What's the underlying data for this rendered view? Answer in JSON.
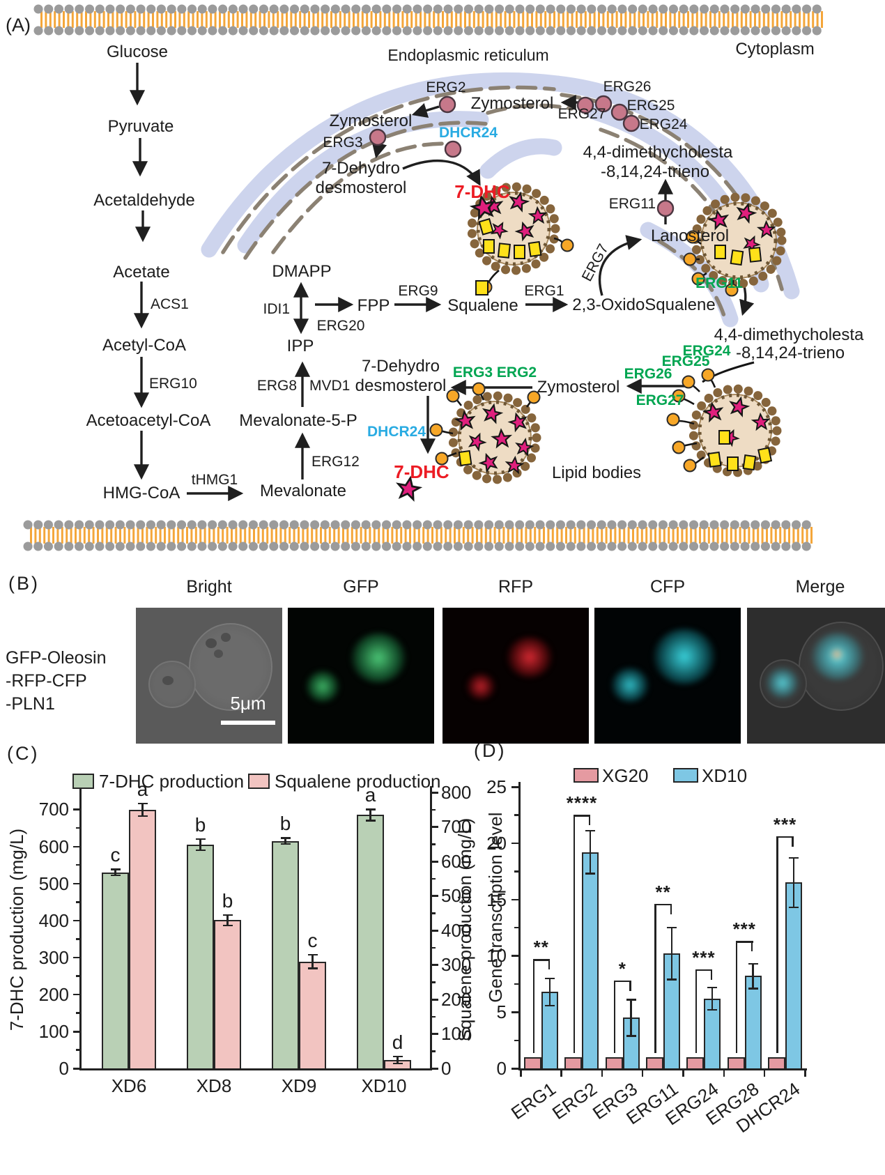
{
  "colors": {
    "green_label": "#00A551",
    "blue_label": "#29ABE2",
    "red_label": "#EC1C24",
    "dhc_bar": "#B9D0B5",
    "squalene_bar": "#F2C4C1",
    "xg20_bar": "#E59AA1",
    "xd10_bar": "#7EC7E4",
    "membrane_tail": "#F4A63A",
    "er_band": "#CDD4ED",
    "lipid_fill": "#EEDCC4",
    "star_pink": "#E01F7D",
    "square_yellow": "#FFE11A",
    "dot_orange": "#F7A727"
  },
  "panel_a": {
    "label": "(A)",
    "cytoplasm": "Cytoplasm",
    "er_title": "Endoplasmic reticulum",
    "lipid_bodies": "Lipid bodies",
    "nodes": {
      "glucose": "Glucose",
      "pyruvate": "Pyruvate",
      "acetaldehyde": "Acetaldehyde",
      "acetate": "Acetate",
      "acetyl_coa": "Acetyl-CoA",
      "acetoacetyl_coa": "Acetoacetyl-CoA",
      "hmg_coa": "HMG-CoA",
      "mevalonate": "Mevalonate",
      "mevalonate_5p": "Mevalonate-5-P",
      "ipp": "IPP",
      "dmapp": "DMAPP",
      "fpp": "FPP",
      "squalene": "Squalene",
      "oxidosqualene": "2,3-OxidoSqualene",
      "lanosterol": "Lanosterol",
      "dimethycholesta_line1": "4,4-dimethycholesta",
      "dimethycholesta_line2": "-8,14,24-trieno",
      "zymosterol": "Zymosterol",
      "dehydro_line1": "7-Dehydro",
      "dehydro_line2": "desmosterol",
      "seven_dhc": "7-DHC"
    },
    "enzymes": {
      "acs1": "ACS1",
      "erg10": "ERG10",
      "thmg1": "tHMG1",
      "erg12": "ERG12",
      "erg8": "ERG8",
      "mvd1": "MVD1",
      "idi1": "IDI1",
      "erg20": "ERG20",
      "erg9": "ERG9",
      "erg1": "ERG1",
      "erg7": "ERG7",
      "erg11": "ERG11",
      "erg2": "ERG2",
      "erg3": "ERG3",
      "erg24": "ERG24",
      "erg25": "ERG25",
      "erg26": "ERG26",
      "erg27": "ERG27",
      "dhcr24": "DHCR24",
      "erg3_erg2": "ERG3 ERG2"
    }
  },
  "panel_b": {
    "label": "(B)",
    "strain_lines": [
      "GFP-Oleosin",
      "-RFP-CFP",
      "-PLN1"
    ],
    "columns": [
      "Bright",
      "GFP",
      "RFP",
      "CFP",
      "Merge"
    ],
    "scale_bar": "5μm"
  },
  "panel_c": {
    "label": "(C)",
    "chart_data": {
      "type": "bar",
      "categories": [
        "XD6",
        "XD8",
        "XD9",
        "XD10"
      ],
      "series": [
        {
          "name": "7-DHC production",
          "axis": "left",
          "values": [
            530,
            605,
            615,
            685
          ],
          "errors": [
            8,
            15,
            8,
            15
          ],
          "letters": [
            "c",
            "b",
            "b",
            "a"
          ]
        },
        {
          "name": "Squalene production",
          "axis": "right",
          "values": [
            750,
            430,
            310,
            25
          ],
          "errors": [
            18,
            15,
            20,
            10
          ],
          "letters": [
            "a",
            "b",
            "c",
            "d"
          ]
        }
      ],
      "left_axis": {
        "label": "7-DHC production (mg/L)",
        "ticks": [
          0,
          100,
          200,
          300,
          400,
          500,
          600,
          700
        ],
        "range": [
          0,
          763
        ]
      },
      "right_axis": {
        "label": "Squalene production (mg/L)",
        "ticks": [
          0,
          100,
          200,
          300,
          400,
          500,
          600,
          700,
          800
        ],
        "range": [
          0,
          818
        ]
      },
      "legend_position": "top",
      "grid": false
    }
  },
  "panel_d": {
    "label": "(D)",
    "chart_data": {
      "type": "bar",
      "categories": [
        "ERG1",
        "ERG2",
        "ERG3",
        "ERG11",
        "ERG24",
        "ERG28",
        "DHCR24"
      ],
      "series": [
        {
          "name": "XG20",
          "values": [
            1,
            1,
            1,
            1,
            1,
            1,
            1
          ]
        },
        {
          "name": "XD10",
          "values": [
            6.8,
            19.2,
            4.5,
            10.2,
            6.2,
            8.2,
            16.5
          ],
          "errors": [
            1.2,
            1.9,
            1.6,
            2.3,
            1.0,
            1.1,
            2.2
          ]
        }
      ],
      "significance": [
        {
          "stars": "**",
          "bracket_y": 9.7
        },
        {
          "stars": "****",
          "bracket_y": 22.5
        },
        {
          "stars": "*",
          "bracket_y": 7.8
        },
        {
          "stars": "**",
          "bracket_y": 14.6
        },
        {
          "stars": "***",
          "bracket_y": 8.8
        },
        {
          "stars": "***",
          "bracket_y": 11.3
        },
        {
          "stars": "***",
          "bracket_y": 20.6
        }
      ],
      "y_axis": {
        "label": "Gene transcription level",
        "ticks": [
          0,
          5,
          10,
          15,
          20,
          25
        ],
        "range": [
          0,
          25
        ]
      },
      "legend_position": "top",
      "grid": false
    }
  }
}
